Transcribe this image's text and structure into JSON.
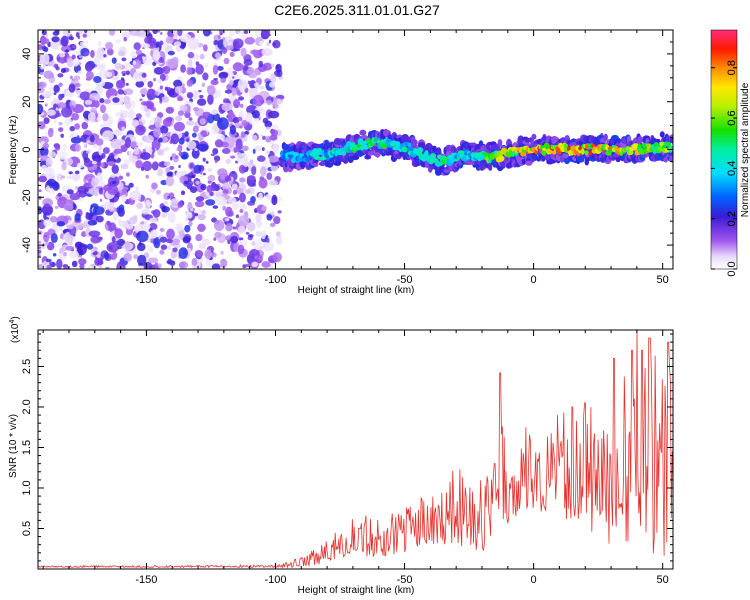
{
  "title": "C2E6.2025.311.01.01.G27",
  "chart_data": [
    {
      "type": "heatmap",
      "xlabel": "Height of straight line (km)",
      "ylabel": "Frequency (Hz)",
      "xlim": [
        -192,
        54
      ],
      "ylim": [
        -50,
        50
      ],
      "x_ticks": [
        -150,
        -100,
        -50,
        0,
        50
      ],
      "x_tick_labels": [
        "-150",
        "-100",
        "-50",
        "0",
        "50"
      ],
      "y_ticks": [
        40,
        20,
        0,
        -20,
        -40
      ],
      "y_tick_labels": [
        "40",
        "20",
        "0",
        "-20",
        "-40"
      ],
      "noise_region_x": [
        -192,
        -98
      ],
      "signal_track": {
        "x": [
          -97,
          -90,
          -80,
          -70,
          -60,
          -50,
          -45,
          -40,
          -35,
          -30,
          -25,
          -20,
          -15,
          -10,
          -5,
          0,
          10,
          20,
          30,
          40,
          50,
          54
        ],
        "freq": [
          -3,
          -3,
          -2,
          1,
          3,
          1,
          -1,
          -4,
          -5,
          -3,
          -2,
          -3,
          -3,
          -2,
          -1,
          0,
          0,
          0,
          0,
          0,
          1,
          0
        ],
        "amp": [
          0.4,
          0.45,
          0.5,
          0.55,
          0.6,
          0.55,
          0.5,
          0.5,
          0.55,
          0.55,
          0.5,
          0.55,
          0.75,
          0.8,
          0.85,
          0.95,
          0.9,
          0.9,
          0.85,
          0.8,
          0.75,
          0.7
        ]
      },
      "colorbar": {
        "label": "Normalized spectral amplitude",
        "range": [
          0,
          0.95
        ],
        "ticks": [
          0.0,
          0.2,
          0.4,
          0.6,
          0.8
        ],
        "tick_labels": [
          "0.0",
          "0.2",
          "0.4",
          "0.6",
          "0.8"
        ]
      }
    },
    {
      "type": "line",
      "xlabel": "Height of straight line (km)",
      "ylabel": "SNR (10 * v/v)",
      "y_multiplier": "(x10",
      "y_multiplier_exp": "4",
      "y_multiplier_close": ")",
      "xlim": [
        -192,
        54
      ],
      "ylim": [
        0,
        2.95
      ],
      "x_ticks": [
        -150,
        -100,
        -50,
        0,
        50
      ],
      "x_tick_labels": [
        "-150",
        "-100",
        "-50",
        "0",
        "50"
      ],
      "y_ticks": [
        0.5,
        1.0,
        1.5,
        2.0,
        2.5
      ],
      "y_tick_labels": [
        "0.5",
        "1.0",
        "1.5",
        "2.0",
        "2.5"
      ],
      "color": "#e8312d",
      "series": [
        {
          "name": "SNR",
          "envelope_x": [
            -192,
            -100,
            -90,
            -80,
            -75,
            -70,
            -60,
            -50,
            -40,
            -30,
            -20,
            -15,
            -13,
            -10,
            -5,
            0,
            10,
            20,
            30,
            40,
            45,
            50,
            54
          ],
          "envelope_min": [
            0.02,
            0.02,
            0.02,
            0.05,
            0.15,
            0.15,
            0.15,
            0.2,
            0.3,
            0.3,
            0.2,
            0.4,
            0.7,
            0.5,
            0.7,
            0.7,
            0.7,
            0.4,
            0.3,
            0.3,
            0.1,
            0.1,
            0.2
          ],
          "envelope_max": [
            0.04,
            0.05,
            0.15,
            0.35,
            0.55,
            0.75,
            0.65,
            0.75,
            0.95,
            1.3,
            1.15,
            1.2,
            2.4,
            1.2,
            1.5,
            1.75,
            1.95,
            2.05,
            2.1,
            2.65,
            2.95,
            2.8,
            2.7
          ],
          "spikes": [
            [
              -13,
              2.42
            ],
            [
              -15,
              1.3
            ],
            [
              -3,
              1.75
            ],
            [
              15,
              2.0
            ],
            [
              20,
              2.05
            ],
            [
              31,
              2.6
            ],
            [
              38,
              2.7
            ],
            [
              40,
              2.95
            ],
            [
              42,
              2.7
            ],
            [
              45,
              2.85
            ],
            [
              52,
              2.8
            ]
          ]
        }
      ]
    }
  ]
}
